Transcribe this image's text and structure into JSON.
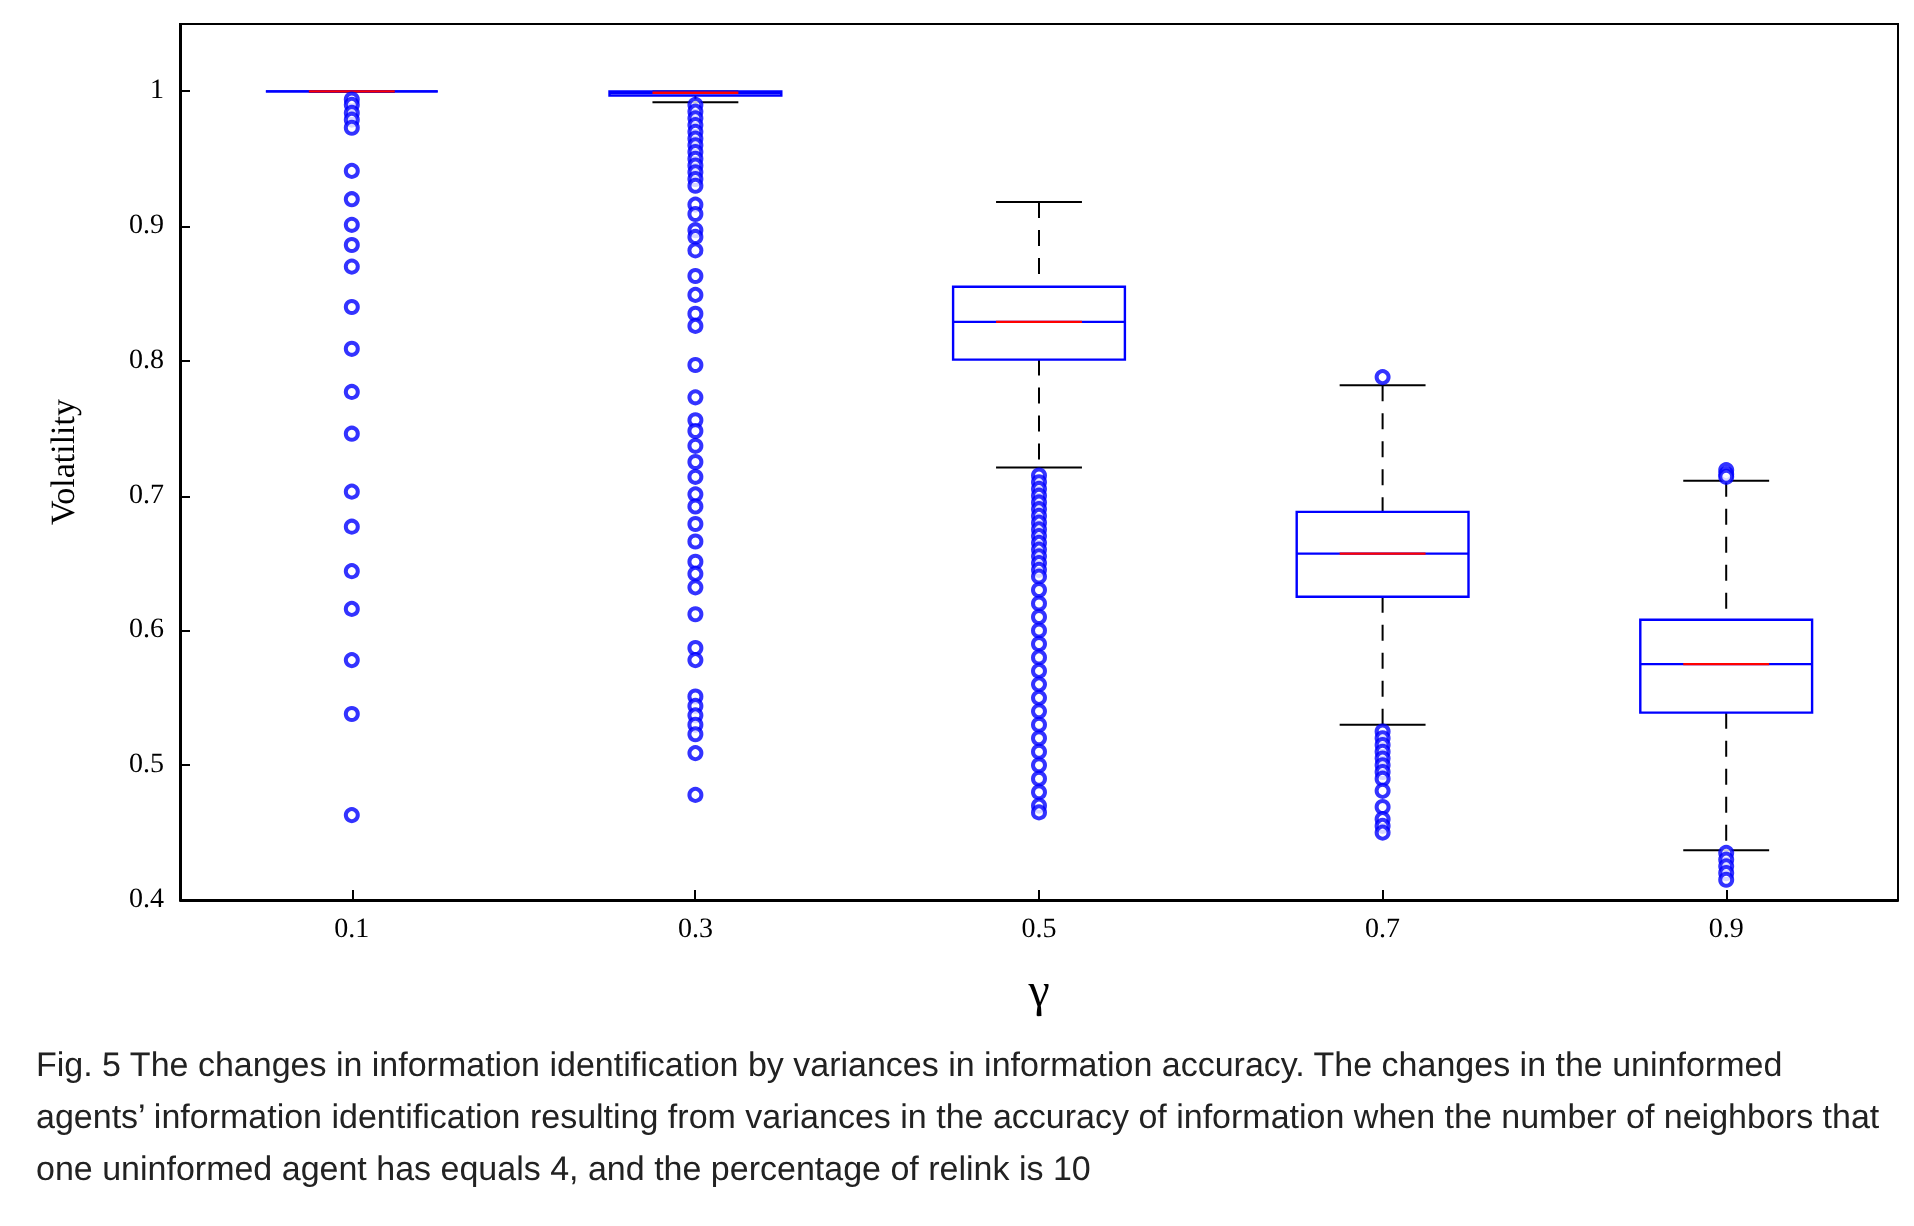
{
  "chart_data": {
    "type": "box",
    "xlabel": "γ",
    "ylabel": "Volatility",
    "categories": [
      "0.1",
      "0.3",
      "0.5",
      "0.7",
      "0.9"
    ],
    "ylim": [
      0.4,
      1.05
    ],
    "yticks": [
      0.4,
      0.5,
      0.6,
      0.7,
      0.8,
      0.9,
      1
    ],
    "grid": false,
    "marker": "circle",
    "series": [
      {
        "color": "#0000ff",
        "boxes": [
          {
            "low": 1,
            "q1": 1,
            "median": 1,
            "q3": 1,
            "high": 1,
            "outliers": [
              0.994,
              0.99,
              0.984,
              0.979,
              0.973,
              0.941,
              0.92,
              0.901,
              0.886,
              0.87,
              0.84,
              0.809,
              0.777,
              0.746,
              0.703,
              0.677,
              0.644,
              0.616,
              0.578,
              0.538,
              0.463
            ]
          },
          {
            "low": 0.992,
            "q1": 0.997,
            "median": 0.999,
            "q3": 1,
            "high": 1,
            "outliers": [
              0.99,
              0.985,
              0.98,
              0.975,
              0.97,
              0.965,
              0.96,
              0.955,
              0.95,
              0.945,
              0.94,
              0.935,
              0.93,
              0.916,
              0.909,
              0.897,
              0.892,
              0.882,
              0.863,
              0.849,
              0.835,
              0.826,
              0.797,
              0.773,
              0.756,
              0.748,
              0.737,
              0.725,
              0.714,
              0.701,
              0.692,
              0.679,
              0.666,
              0.651,
              0.642,
              0.632,
              0.612,
              0.587,
              0.578,
              0.551,
              0.544,
              0.537,
              0.53,
              0.523,
              0.509,
              0.478
            ]
          },
          {
            "low": 0.721,
            "q1": 0.801,
            "median": 0.829,
            "q3": 0.855,
            "high": 0.918,
            "outliers": [
              0.715,
              0.71,
              0.705,
              0.7,
              0.695,
              0.69,
              0.685,
              0.68,
              0.675,
              0.67,
              0.665,
              0.66,
              0.655,
              0.65,
              0.645,
              0.64,
              0.63,
              0.62,
              0.61,
              0.6,
              0.59,
              0.58,
              0.57,
              0.56,
              0.55,
              0.54,
              0.53,
              0.52,
              0.51,
              0.5,
              0.49,
              0.48,
              0.47,
              0.465
            ]
          },
          {
            "low": 0.53,
            "q1": 0.625,
            "median": 0.657,
            "q3": 0.688,
            "high": 0.782,
            "outliers": [
              0.788,
              0.525,
              0.52,
              0.515,
              0.51,
              0.505,
              0.5,
              0.495,
              0.49,
              0.481,
              0.469,
              0.46,
              0.455,
              0.45
            ]
          },
          {
            "low": 0.437,
            "q1": 0.539,
            "median": 0.575,
            "q3": 0.608,
            "high": 0.711,
            "outliers": [
              0.719,
              0.716,
              0.714,
              0.435,
              0.43,
              0.425,
              0.42,
              0.415
            ]
          }
        ]
      }
    ],
    "annotations": [
      "Fig. 5  The changes in information identification by variances in information accuracy. The changes in the uninformed agents’ information identification resulting from variances in the accuracy of information when the number of neighbors that one uninformed agent has equals 4, and the percentage of relink is 10"
    ]
  }
}
